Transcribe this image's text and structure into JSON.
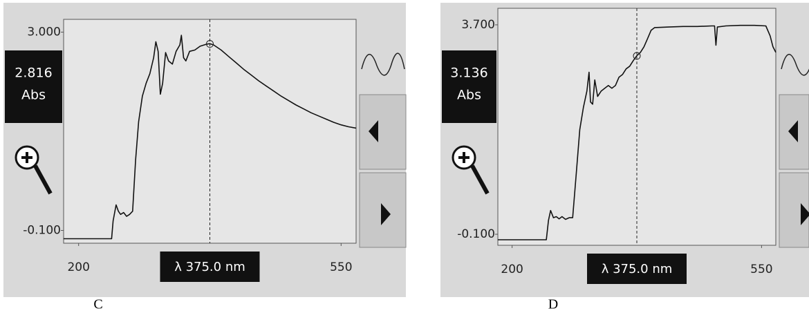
{
  "chart_data": [
    {
      "type": "line",
      "panel_label": "C",
      "x": [
        180,
        244,
        246,
        250,
        253,
        256,
        260,
        264,
        268,
        272,
        276,
        280,
        285,
        290,
        295,
        300,
        303,
        306,
        309,
        312,
        316,
        320,
        325,
        330,
        335,
        337,
        340,
        343,
        348,
        355,
        362,
        370,
        375,
        380,
        390,
        400,
        410,
        420,
        430,
        440,
        450,
        460,
        470,
        480,
        490,
        500,
        510,
        520,
        530,
        540,
        550,
        560,
        570
      ],
      "values": [
        -0.23,
        -0.23,
        0.05,
        0.3,
        0.2,
        0.15,
        0.18,
        0.12,
        0.15,
        0.2,
        1.0,
        1.6,
        2.0,
        2.2,
        2.35,
        2.6,
        2.85,
        2.7,
        2.03,
        2.2,
        2.68,
        2.55,
        2.5,
        2.7,
        2.8,
        2.95,
        2.6,
        2.55,
        2.7,
        2.72,
        2.78,
        2.81,
        2.82,
        2.8,
        2.72,
        2.62,
        2.52,
        2.42,
        2.33,
        2.24,
        2.16,
        2.08,
        2.0,
        1.93,
        1.86,
        1.8,
        1.74,
        1.69,
        1.64,
        1.59,
        1.55,
        1.52,
        1.5
      ],
      "color": "#111",
      "xlim": [
        180,
        570
      ],
      "xticks": [
        200,
        550
      ],
      "ylim": [
        -0.3,
        3.2
      ],
      "yticks": [
        {
          "value": 3,
          "label": "3.000"
        },
        {
          "value": -0.1,
          "label": "-0.100"
        }
      ],
      "cursor": {
        "x": 375,
        "label": "λ 375.0 nm"
      },
      "readout": {
        "value": 2.816,
        "label": "2.816",
        "unit": "Abs"
      }
    },
    {
      "type": "line",
      "panel_label": "D",
      "x": [
        180,
        248,
        251,
        254,
        258,
        262,
        266,
        270,
        275,
        280,
        285,
        290,
        295,
        300,
        305,
        308,
        310,
        313,
        316,
        320,
        325,
        330,
        335,
        340,
        345,
        350,
        355,
        360,
        365,
        370,
        375,
        380,
        385,
        390,
        395,
        400,
        420,
        440,
        460,
        480,
        484,
        486,
        488,
        500,
        520,
        540,
        556,
        562,
        566,
        570
      ],
      "values": [
        -0.2,
        -0.2,
        0.15,
        0.33,
        0.2,
        0.22,
        0.18,
        0.22,
        0.17,
        0.2,
        0.2,
        1.0,
        1.8,
        2.2,
        2.5,
        2.84,
        2.3,
        2.26,
        2.7,
        2.4,
        2.5,
        2.55,
        2.6,
        2.55,
        2.6,
        2.75,
        2.8,
        2.9,
        2.95,
        3.05,
        3.14,
        3.2,
        3.3,
        3.45,
        3.6,
        3.65,
        3.66,
        3.67,
        3.67,
        3.68,
        3.68,
        3.33,
        3.66,
        3.68,
        3.69,
        3.69,
        3.68,
        3.5,
        3.3,
        3.2
      ],
      "color": "#111",
      "xlim": [
        180,
        570
      ],
      "xticks": [
        200,
        550
      ],
      "ylim": [
        -0.3,
        4.0
      ],
      "yticks": [
        {
          "value": 3.7,
          "label": "3.700"
        },
        {
          "value": -0.1,
          "label": "-0.100"
        }
      ],
      "cursor": {
        "x": 375,
        "label": "λ 375.0 nm"
      },
      "readout": {
        "value": 3.136,
        "label": "3.136",
        "unit": "Abs"
      }
    }
  ]
}
